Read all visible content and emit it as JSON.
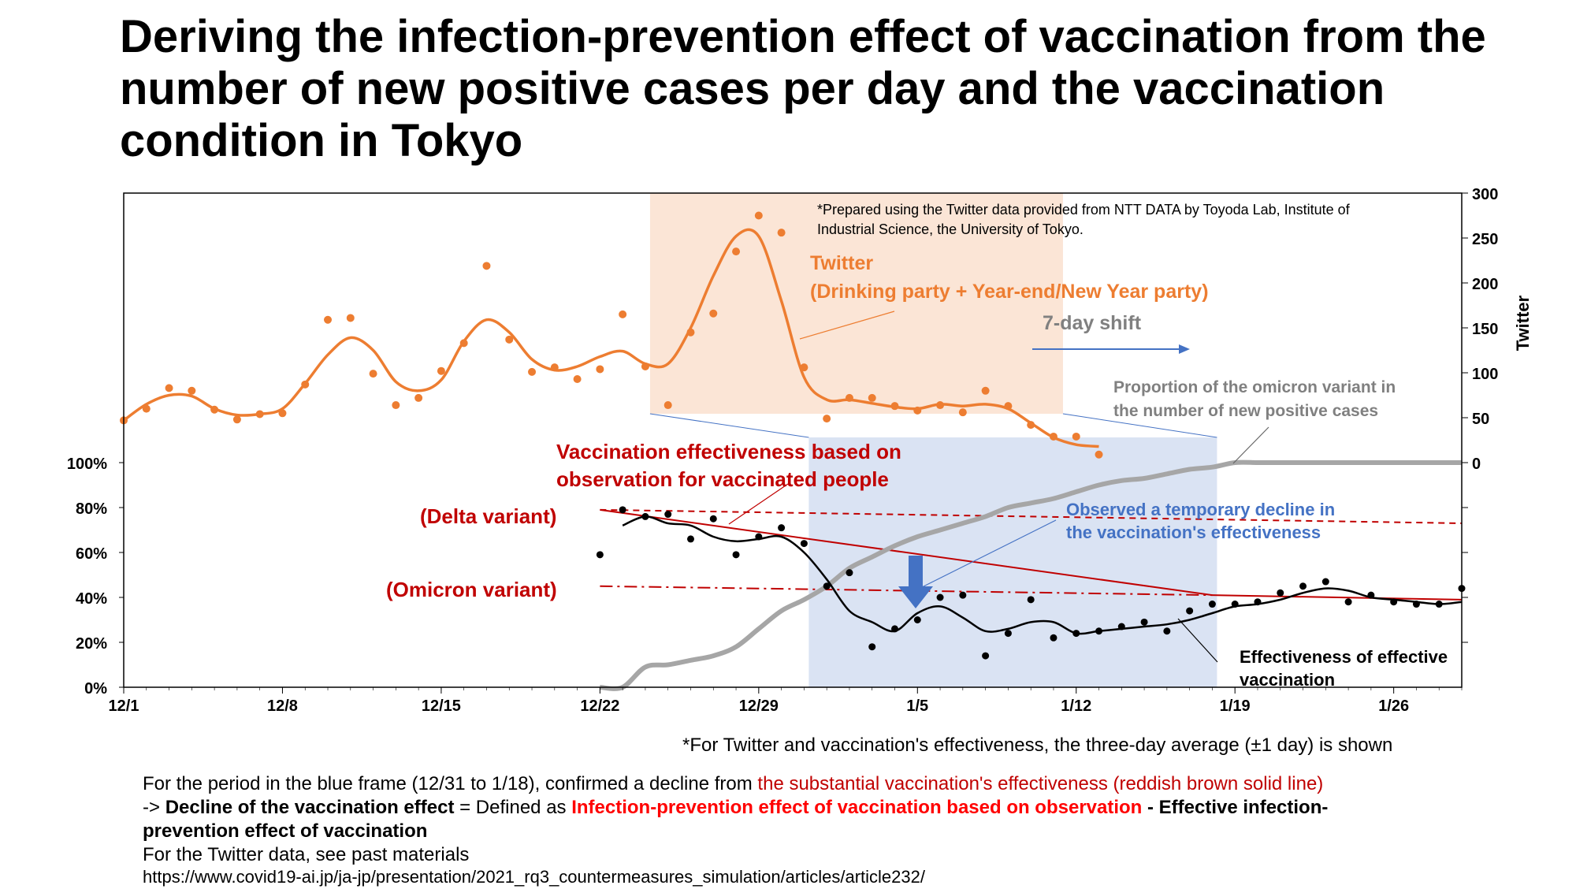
{
  "title": "Deriving the infection-prevention effect of vaccination from the number of new positive cases per day and the vaccination condition in Tokyo",
  "chart_data": {
    "type": "line",
    "x_axis": {
      "range": [
        "12/1",
        "1/29"
      ],
      "tick_labels": [
        "12/1",
        "12/8",
        "12/15",
        "12/22",
        "12/29",
        "1/5",
        "1/12",
        "1/19",
        "1/26"
      ]
    },
    "y_left": {
      "range": [
        0,
        100
      ],
      "tick_labels": [
        "0%",
        "20%",
        "40%",
        "60%",
        "80%",
        "100%"
      ]
    },
    "y_right": {
      "label": "Twitter",
      "range": [
        0,
        300
      ],
      "tick_labels": [
        "0",
        "50",
        "100",
        "150",
        "200",
        "250",
        "300"
      ]
    },
    "colors": {
      "twitter": "#ed7d31",
      "omicron": "#a6a6a6",
      "observed": "#000000",
      "substantial": "#c00000",
      "orange_frame": "#fbe5d6",
      "blue_frame": "#dae3f3",
      "blue_arrow": "#4472c4"
    },
    "series": [
      {
        "name": "Twitter (Drinking party + Year-end/New Year party)",
        "axis": "right",
        "dates": [
          "12/1",
          "12/2",
          "12/3",
          "12/4",
          "12/5",
          "12/6",
          "12/7",
          "12/8",
          "12/9",
          "12/10",
          "12/11",
          "12/12",
          "12/13",
          "12/14",
          "12/15",
          "12/16",
          "12/17",
          "12/18",
          "12/19",
          "12/20",
          "12/21",
          "12/22",
          "12/23",
          "12/24",
          "12/25",
          "12/26",
          "12/27",
          "12/28",
          "12/29",
          "12/30",
          "12/31",
          "1/1",
          "1/2",
          "1/3",
          "1/4",
          "1/5",
          "1/6",
          "1/7",
          "1/8",
          "1/9",
          "1/10",
          "1/11",
          "1/12",
          "1/13"
        ],
        "points": [
          47,
          60,
          83,
          80,
          59,
          48,
          54,
          55,
          87,
          159,
          161,
          99,
          64,
          72,
          102,
          133,
          219,
          137,
          101,
          106,
          93,
          104,
          165,
          107,
          64,
          145,
          166,
          235,
          275,
          256,
          106,
          49,
          72,
          72,
          63,
          58,
          64,
          56,
          80,
          63,
          42,
          29,
          29,
          9
        ],
        "smoothed": [
          47,
          65,
          75,
          74,
          60,
          53,
          54,
          60,
          88,
          120,
          139,
          125,
          90,
          80,
          92,
          135,
          159,
          145,
          115,
          103,
          107,
          118,
          124,
          110,
          110,
          150,
          208,
          252,
          252,
          180,
          95,
          70,
          70,
          66,
          62,
          60,
          65,
          63,
          65,
          60,
          44,
          28,
          20,
          18
        ]
      },
      {
        "name": "Proportion of the omicron variant in the number of new positive cases",
        "axis": "left",
        "dates": [
          "12/22",
          "12/23",
          "12/24",
          "12/25",
          "12/26",
          "12/27",
          "12/28",
          "12/29",
          "12/30",
          "12/31",
          "1/1",
          "1/2",
          "1/3",
          "1/4",
          "1/5",
          "1/6",
          "1/7",
          "1/8",
          "1/9",
          "1/10",
          "1/11",
          "1/12",
          "1/13",
          "1/14",
          "1/15",
          "1/16",
          "1/17",
          "1/18",
          "1/19",
          "1/20",
          "1/21",
          "1/22",
          "1/23",
          "1/24",
          "1/25",
          "1/26",
          "1/27",
          "1/28",
          "1/29"
        ],
        "values": [
          0,
          0,
          9,
          10,
          12,
          14,
          18,
          26,
          34,
          39,
          45,
          53,
          58,
          63,
          67,
          70,
          73,
          76,
          80,
          82,
          84,
          87,
          90,
          92,
          93,
          95,
          97,
          98,
          100,
          100,
          100,
          100,
          100,
          100,
          100,
          100,
          100,
          100,
          100
        ]
      },
      {
        "name": "Vaccination effectiveness based on observation for vaccinated people",
        "axis": "left",
        "dates": [
          "12/22",
          "12/23",
          "12/24",
          "12/25",
          "12/26",
          "12/27",
          "12/28",
          "12/29",
          "12/30",
          "12/31",
          "1/1",
          "1/2",
          "1/3",
          "1/4",
          "1/5",
          "1/6",
          "1/7",
          "1/8",
          "1/9",
          "1/10",
          "1/11",
          "1/12",
          "1/13",
          "1/14",
          "1/15",
          "1/16",
          "1/17",
          "1/18",
          "1/19",
          "1/20",
          "1/21",
          "1/22",
          "1/23",
          "1/24",
          "1/25",
          "1/26",
          "1/27",
          "1/28",
          "1/29"
        ],
        "points": [
          59,
          79,
          76,
          77,
          66,
          75,
          59,
          67,
          71,
          64,
          45,
          51,
          18,
          26,
          30,
          40,
          41,
          14,
          24,
          39,
          22,
          24,
          25,
          27,
          29,
          25,
          34,
          37,
          37,
          38,
          42,
          45,
          47,
          38,
          41,
          38,
          37,
          37,
          44
        ],
        "smoothed": [
          null,
          72,
          76,
          73,
          72,
          67,
          65,
          66,
          67,
          60,
          48,
          34,
          29,
          25,
          33,
          36,
          31,
          25,
          26,
          29,
          29,
          24,
          25,
          26,
          27,
          28,
          30,
          33,
          36,
          37,
          39,
          42,
          44,
          43,
          40,
          39,
          38,
          37,
          38
        ]
      },
      {
        "name": "Effectiveness of effective vaccination",
        "axis": "left",
        "segments": [
          {
            "variant": "Delta variant",
            "style": "dashed",
            "from": [
              "12/22",
              79
            ],
            "to": [
              "1/29",
              73
            ]
          },
          {
            "variant": "Omicron variant",
            "style": "dash-dot",
            "from": [
              "12/22",
              45
            ],
            "to": [
              "1/18",
              41
            ]
          },
          {
            "variant": "substantial",
            "style": "solid",
            "from": [
              "12/22",
              79
            ],
            "to": [
              "1/18",
              41
            ]
          },
          {
            "variant": "substantial",
            "style": "solid",
            "from": [
              "1/18",
              41
            ],
            "to": [
              "1/29",
              39
            ]
          }
        ]
      }
    ],
    "frames": [
      {
        "name": "orange frame",
        "from": "12/24",
        "to": "1/11"
      },
      {
        "name": "blue frame",
        "from": "12/31",
        "to": "1/18"
      }
    ],
    "annotations": {
      "source_note": "*Prepared using the Twitter data provided from NTT DATA by Toyoda Lab, Institute of Industrial Science, the University of Tokyo.",
      "twitter_line1": "Twitter",
      "twitter_line2": "(Drinking party + Year-end/New Year party)",
      "shift": "7-day shift",
      "omicron_line1": "Proportion of the omicron variant in",
      "omicron_line2": "the number of new positive cases",
      "vacc_obs_line1": "Vaccination effectiveness based on",
      "vacc_obs_line2": "observation for vaccinated people",
      "delta": "(Delta variant)",
      "omicron_variant": "(Omicron variant)",
      "decline_line1": "Observed a temporary decline in",
      "decline_line2": "the vaccination's effectiveness",
      "effective_line1": "Effectiveness  of effective",
      "effective_line2": "vaccination"
    }
  },
  "notes": {
    "avg": "*For Twitter and vaccination's effectiveness, the three-day average (±1 day) is shown",
    "line1_a": "For the period in the blue frame (12/31 to 1/18), confirmed a decline from ",
    "line1_b": "the substantial vaccination's effectiveness (reddish brown solid line)",
    "line2_a": "-> ",
    "line2_b": "Decline of the vaccination effect",
    "line2_c": " = Defined as ",
    "line2_d": "Infection-prevention effect of vaccination based on observation",
    "line2_e": " - Effective infection-",
    "line3": "prevention effect of vaccination",
    "line4": "For the Twitter data, see past materials",
    "line5": "https://www.covid19-ai.jp/ja-jp/presentation/2021_rq3_countermeasures_simulation/articles/article232/"
  }
}
